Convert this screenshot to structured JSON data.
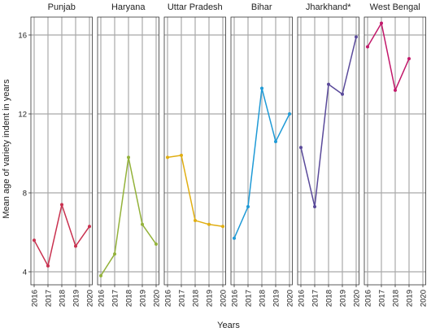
{
  "chart_data": {
    "type": "line",
    "facets": [
      "Punjab",
      "Haryana",
      "Uttar Pradesh",
      "Bihar",
      "Jharkhand*",
      "West Bengal"
    ],
    "x": [
      2016,
      2017,
      2018,
      2019,
      2020
    ],
    "x_ticks": [
      "2016",
      "2017",
      "2018",
      "2019",
      "2020"
    ],
    "y_ticks": [
      "4",
      "8",
      "12",
      "16"
    ],
    "xlim": [
      2016,
      2020
    ],
    "ylim": [
      3.6,
      17.2
    ],
    "xlabel": "Years",
    "ylabel": "Mean age of variety indent in years",
    "grid": true,
    "series": [
      {
        "facet": "Punjab",
        "color": "#c9314f",
        "x": [
          2016,
          2017,
          2018,
          2019,
          2020
        ],
        "values": [
          5.6,
          4.3,
          7.4,
          5.3,
          6.3
        ]
      },
      {
        "facet": "Haryana",
        "color": "#93b23a",
        "x": [
          2016,
          2017,
          2018,
          2019,
          2020
        ],
        "values": [
          3.8,
          4.9,
          9.8,
          6.4,
          5.4
        ]
      },
      {
        "facet": "Uttar Pradesh",
        "color": "#e0ae12",
        "x": [
          2016,
          2017,
          2018,
          2019,
          2020
        ],
        "values": [
          9.8,
          9.9,
          6.6,
          6.4,
          6.3
        ]
      },
      {
        "facet": "Bihar",
        "color": "#1f9ad6",
        "x": [
          2016,
          2017,
          2018,
          2019,
          2020
        ],
        "values": [
          5.7,
          7.3,
          13.3,
          10.6,
          12.0
        ]
      },
      {
        "facet": "Jharkhand*",
        "color": "#5a4a9a",
        "x": [
          2016,
          2017,
          2018,
          2019,
          2020
        ],
        "values": [
          10.3,
          7.3,
          13.5,
          13.0,
          15.9
        ]
      },
      {
        "facet": "West Bengal",
        "color": "#c2186a",
        "x": [
          2016,
          2017,
          2018,
          2019
        ],
        "values": [
          15.4,
          16.6,
          13.2,
          14.8
        ]
      }
    ]
  }
}
